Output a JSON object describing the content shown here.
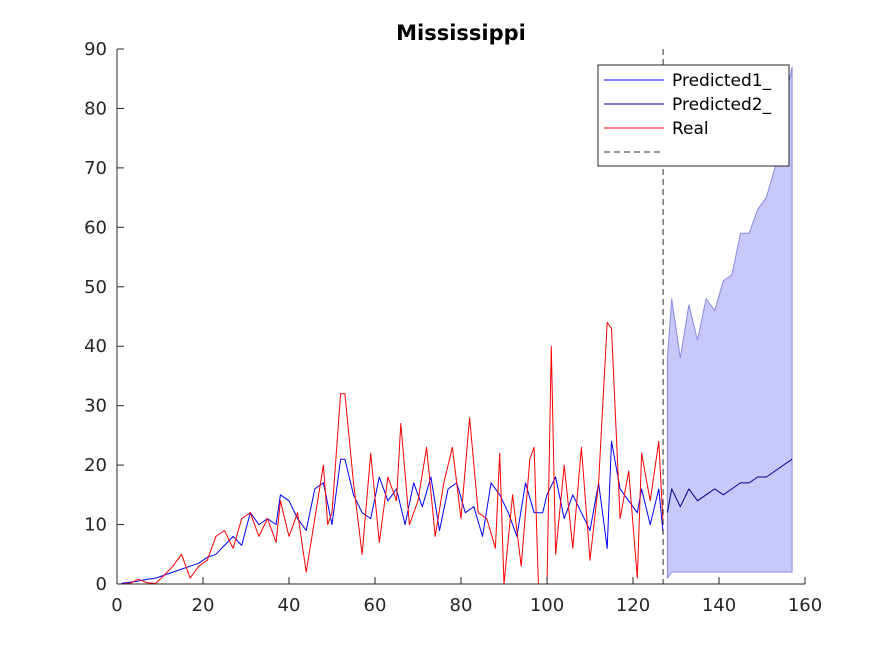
{
  "chart_data": {
    "type": "line",
    "title": "Mississippi",
    "xlim": [
      0,
      160
    ],
    "ylim": [
      0,
      90
    ],
    "x_ticks": [
      0,
      20,
      40,
      60,
      80,
      100,
      120,
      140,
      160
    ],
    "y_ticks": [
      0,
      10,
      20,
      30,
      40,
      50,
      60,
      70,
      80,
      90
    ],
    "grid": false,
    "legend_position": "top-right",
    "legend": [
      "Predicted1_",
      "Predicted2_",
      "Real",
      ""
    ],
    "colors": {
      "predicted1": "#0000ff",
      "predicted2": "#00008b",
      "real": "#ff0000",
      "band_fill": "#c8c8fa",
      "band_edge": "#8a8ae0",
      "divider": "#333333",
      "axis": "#262626"
    },
    "divider_x": 127,
    "series": [
      {
        "name": "Predicted1_",
        "x": [
          1,
          3,
          5,
          7,
          9,
          11,
          13,
          15,
          17,
          19,
          21,
          23,
          25,
          27,
          29,
          31,
          33,
          35,
          37,
          38,
          40,
          42,
          44,
          46,
          48,
          50,
          52,
          53,
          55,
          57,
          59,
          61,
          63,
          65,
          67,
          69,
          71,
          73,
          75,
          77,
          79,
          81,
          83,
          85,
          87,
          89,
          91,
          93,
          95,
          97,
          99,
          100,
          102,
          104,
          106,
          108,
          110,
          112,
          114,
          115,
          117,
          119,
          121,
          122,
          124,
          126,
          127
        ],
        "y": [
          0.1,
          0.3,
          0.5,
          0.8,
          1,
          1.5,
          2,
          2.5,
          3,
          3.5,
          4.5,
          5,
          6.5,
          8,
          6.5,
          12,
          10,
          11,
          10,
          15,
          14,
          11,
          9,
          16,
          17,
          10,
          21,
          21,
          15,
          12,
          11,
          18,
          14,
          16,
          10,
          17,
          13,
          18,
          9,
          16,
          17,
          12,
          13,
          8,
          17,
          15,
          12,
          8,
          17,
          12,
          12,
          15,
          18,
          11,
          15,
          12,
          9,
          17,
          6,
          24,
          16,
          14,
          12,
          16,
          10,
          16,
          8.5
        ]
      },
      {
        "name": "Predicted2_",
        "x": [
          128,
          129,
          131,
          133,
          135,
          137,
          139,
          141,
          143,
          145,
          147,
          149,
          151,
          153,
          155,
          157
        ],
        "y": [
          12,
          16,
          13,
          16,
          14,
          15,
          16,
          15,
          16,
          17,
          17,
          18,
          18,
          19,
          20,
          21
        ]
      },
      {
        "name": "Real",
        "x": [
          1,
          3,
          5,
          7,
          9,
          11,
          13,
          15,
          17,
          19,
          21,
          23,
          25,
          27,
          29,
          31,
          33,
          35,
          37,
          38,
          40,
          42,
          44,
          46,
          48,
          49,
          50,
          52,
          53,
          55,
          57,
          59,
          61,
          63,
          65,
          66,
          68,
          70,
          72,
          74,
          76,
          78,
          80,
          82,
          84,
          86,
          88,
          89,
          90,
          92,
          94,
          96,
          97,
          98,
          100,
          101,
          102,
          104,
          106,
          108,
          110,
          112,
          114,
          115,
          117,
          119,
          121,
          122,
          124,
          126,
          127
        ],
        "y": [
          0,
          0.1,
          0.8,
          0.2,
          0.1,
          1.5,
          3,
          5,
          1,
          3,
          4,
          8,
          9,
          6,
          11,
          12,
          8,
          11,
          7,
          14,
          8,
          12,
          2,
          11,
          20,
          10,
          12,
          32,
          32,
          17,
          5,
          22,
          7,
          18,
          14,
          27,
          10,
          14,
          23,
          8,
          17,
          23,
          11,
          28,
          12,
          11,
          6,
          22,
          0,
          15,
          3,
          21,
          23,
          0,
          0,
          40,
          5,
          20,
          6,
          23,
          4,
          17,
          44,
          43,
          11,
          19,
          1,
          22,
          14,
          24,
          10
        ]
      }
    ],
    "confidence_band": {
      "x": [
        128,
        129,
        131,
        133,
        135,
        137,
        139,
        141,
        143,
        145,
        147,
        149,
        151,
        153,
        155,
        157
      ],
      "upper": [
        38,
        48,
        38,
        47,
        41,
        48,
        46,
        51,
        52,
        59,
        59,
        63,
        65,
        70,
        80,
        87
      ],
      "lower": [
        1,
        2,
        2,
        2,
        2,
        2,
        2,
        2,
        2,
        2,
        2,
        2,
        2,
        2,
        2,
        2
      ]
    }
  }
}
